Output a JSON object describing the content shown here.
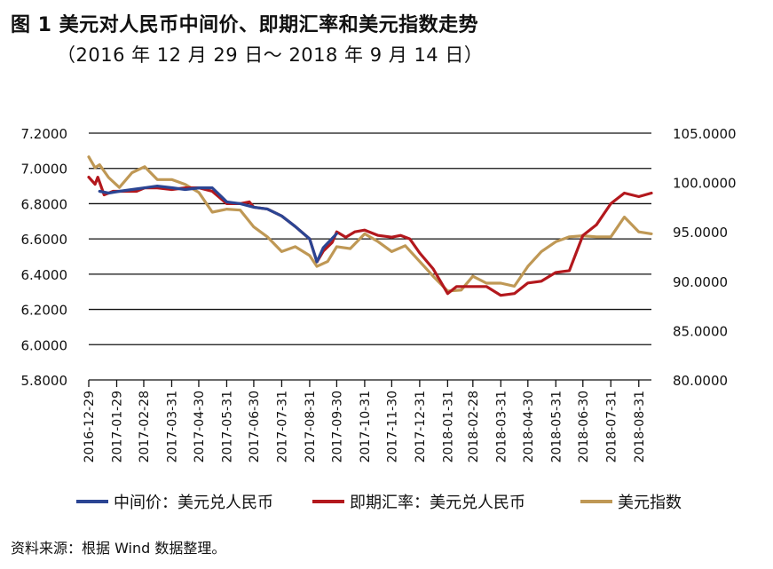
{
  "header": {
    "title": "图 1  美元对人民币中间价、即期汇率和美元指数走势",
    "subtitle": "（2016 年 12 月 29 日～ 2018 年 9 月 14 日）"
  },
  "source": "资料来源：根据 Wind 数据整理。",
  "colors": {
    "mid": "#2b4593",
    "spot": "#b3181d",
    "dxy": "#bf9855",
    "grid": "#111111"
  },
  "chart_data": {
    "type": "line",
    "x_tick_labels": [
      "2016-12-29",
      "2017-01-29",
      "2017-02-28",
      "2017-03-31",
      "2017-04-30",
      "2017-05-31",
      "2017-06-30",
      "2017-07-31",
      "2017-08-31",
      "2017-09-30",
      "2017-10-31",
      "2017-11-30",
      "2017-12-31",
      "2018-01-31",
      "2018-02-28",
      "2018-03-31",
      "2018-04-30",
      "2018-05-31",
      "2018-06-30",
      "2018-07-31",
      "2018-08-31"
    ],
    "xlim": [
      "2016-12-29",
      "2018-09-14"
    ],
    "y_left": {
      "ylim": [
        5.8,
        7.2
      ],
      "ticks": [
        "5.8000",
        "6.0000",
        "6.2000",
        "6.4000",
        "6.6000",
        "6.8000",
        "7.0000",
        "7.2000"
      ]
    },
    "y_right": {
      "ylim": [
        80,
        105
      ],
      "ticks": [
        "80.0000",
        "85.0000",
        "90.0000",
        "95.0000",
        "100.0000",
        "105.0000"
      ]
    },
    "grid": "horizontal",
    "legend_position": "bottom",
    "series": [
      {
        "name": "中间价：美元兑人民币",
        "axis": "left",
        "color_key": "mid",
        "points": [
          [
            "2017-01-10",
            6.87
          ],
          [
            "2017-01-20",
            6.86
          ],
          [
            "2017-02-01",
            6.87
          ],
          [
            "2017-02-15",
            6.88
          ],
          [
            "2017-03-01",
            6.89
          ],
          [
            "2017-03-15",
            6.9
          ],
          [
            "2017-04-01",
            6.89
          ],
          [
            "2017-04-15",
            6.88
          ],
          [
            "2017-05-01",
            6.89
          ],
          [
            "2017-05-15",
            6.89
          ],
          [
            "2017-05-31",
            6.81
          ],
          [
            "2017-06-15",
            6.8
          ],
          [
            "2017-06-30",
            6.78
          ],
          [
            "2017-07-15",
            6.77
          ],
          [
            "2017-07-31",
            6.73
          ],
          [
            "2017-08-15",
            6.67
          ],
          [
            "2017-08-31",
            6.6
          ],
          [
            "2017-09-08",
            6.47
          ],
          [
            "2017-09-15",
            6.55
          ],
          [
            "2017-09-30",
            6.63
          ]
        ]
      },
      {
        "name": "即期汇率：美元兑人民币",
        "axis": "left",
        "color_key": "spot",
        "points": [
          [
            "2016-12-29",
            6.95
          ],
          [
            "2017-01-05",
            6.91
          ],
          [
            "2017-01-08",
            6.95
          ],
          [
            "2017-01-15",
            6.85
          ],
          [
            "2017-01-25",
            6.87
          ],
          [
            "2017-02-05",
            6.87
          ],
          [
            "2017-02-20",
            6.87
          ],
          [
            "2017-03-01",
            6.89
          ],
          [
            "2017-03-15",
            6.89
          ],
          [
            "2017-03-31",
            6.88
          ],
          [
            "2017-04-15",
            6.89
          ],
          [
            "2017-04-30",
            6.89
          ],
          [
            "2017-05-15",
            6.87
          ],
          [
            "2017-05-31",
            6.8
          ],
          [
            "2017-06-15",
            6.8
          ],
          [
            "2017-06-25",
            6.81
          ],
          [
            "2017-06-30",
            6.78
          ],
          [
            "2017-07-15",
            6.77
          ],
          [
            "2017-07-31",
            6.73
          ],
          [
            "2017-08-15",
            6.67
          ],
          [
            "2017-08-31",
            6.6
          ],
          [
            "2017-09-08",
            6.47
          ],
          [
            "2017-09-15",
            6.53
          ],
          [
            "2017-09-25",
            6.58
          ],
          [
            "2017-09-30",
            6.64
          ],
          [
            "2017-10-10",
            6.61
          ],
          [
            "2017-10-20",
            6.64
          ],
          [
            "2017-10-31",
            6.65
          ],
          [
            "2017-11-15",
            6.62
          ],
          [
            "2017-11-30",
            6.61
          ],
          [
            "2017-12-10",
            6.62
          ],
          [
            "2017-12-20",
            6.6
          ],
          [
            "2017-12-31",
            6.52
          ],
          [
            "2018-01-15",
            6.43
          ],
          [
            "2018-01-31",
            6.29
          ],
          [
            "2018-02-10",
            6.33
          ],
          [
            "2018-02-28",
            6.33
          ],
          [
            "2018-03-15",
            6.33
          ],
          [
            "2018-03-31",
            6.28
          ],
          [
            "2018-04-15",
            6.29
          ],
          [
            "2018-04-30",
            6.35
          ],
          [
            "2018-05-15",
            6.36
          ],
          [
            "2018-05-31",
            6.41
          ],
          [
            "2018-06-15",
            6.42
          ],
          [
            "2018-06-30",
            6.62
          ],
          [
            "2018-07-15",
            6.68
          ],
          [
            "2018-07-31",
            6.8
          ],
          [
            "2018-08-15",
            6.86
          ],
          [
            "2018-08-31",
            6.84
          ],
          [
            "2018-09-14",
            6.86
          ]
        ]
      },
      {
        "name": "美元指数",
        "axis": "right",
        "color_key": "dxy",
        "points": [
          [
            "2016-12-29",
            102.6
          ],
          [
            "2017-01-05",
            101.5
          ],
          [
            "2017-01-10",
            101.8
          ],
          [
            "2017-01-20",
            100.5
          ],
          [
            "2017-02-01",
            99.5
          ],
          [
            "2017-02-15",
            101.0
          ],
          [
            "2017-03-01",
            101.6
          ],
          [
            "2017-03-15",
            100.3
          ],
          [
            "2017-03-31",
            100.3
          ],
          [
            "2017-04-15",
            99.8
          ],
          [
            "2017-04-30",
            99.0
          ],
          [
            "2017-05-15",
            97.0
          ],
          [
            "2017-05-31",
            97.3
          ],
          [
            "2017-06-15",
            97.2
          ],
          [
            "2017-06-30",
            95.5
          ],
          [
            "2017-07-15",
            94.5
          ],
          [
            "2017-07-31",
            93.0
          ],
          [
            "2017-08-15",
            93.5
          ],
          [
            "2017-08-31",
            92.6
          ],
          [
            "2017-09-08",
            91.5
          ],
          [
            "2017-09-20",
            92.0
          ],
          [
            "2017-09-30",
            93.5
          ],
          [
            "2017-10-15",
            93.3
          ],
          [
            "2017-10-31",
            94.8
          ],
          [
            "2017-11-15",
            94.0
          ],
          [
            "2017-11-30",
            93.0
          ],
          [
            "2017-12-15",
            93.6
          ],
          [
            "2017-12-31",
            92.0
          ],
          [
            "2018-01-15",
            90.5
          ],
          [
            "2018-01-31",
            89.0
          ],
          [
            "2018-02-15",
            89.1
          ],
          [
            "2018-02-28",
            90.5
          ],
          [
            "2018-03-15",
            89.8
          ],
          [
            "2018-03-31",
            89.8
          ],
          [
            "2018-04-15",
            89.5
          ],
          [
            "2018-04-30",
            91.5
          ],
          [
            "2018-05-15",
            93.0
          ],
          [
            "2018-05-31",
            94.0
          ],
          [
            "2018-06-15",
            94.5
          ],
          [
            "2018-06-30",
            94.6
          ],
          [
            "2018-07-15",
            94.5
          ],
          [
            "2018-07-31",
            94.5
          ],
          [
            "2018-08-15",
            96.5
          ],
          [
            "2018-08-31",
            95.0
          ],
          [
            "2018-09-14",
            94.8
          ]
        ]
      }
    ]
  }
}
